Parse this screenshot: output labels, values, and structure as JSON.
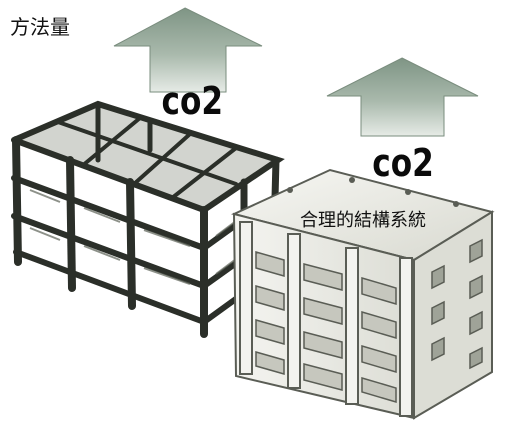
{
  "labels": {
    "top_left": "方法量",
    "right_structure": "合理的結構系統"
  },
  "arrows": {
    "left_text": "co2",
    "right_text": "co2"
  },
  "colors": {
    "arrow_fill": "#8fa394",
    "arrow_shadow": "#6f8574",
    "frame_dark": "#2b2f29",
    "frame_mid": "#5d6358",
    "frame_light": "#a7ab9f",
    "wall_light": "#eeeeea",
    "wall_shadow": "#cfd0c8",
    "wall_line": "#5a5d55"
  },
  "icons": {
    "left_arrow": "up-arrow-icon",
    "right_arrow": "up-arrow-icon"
  }
}
